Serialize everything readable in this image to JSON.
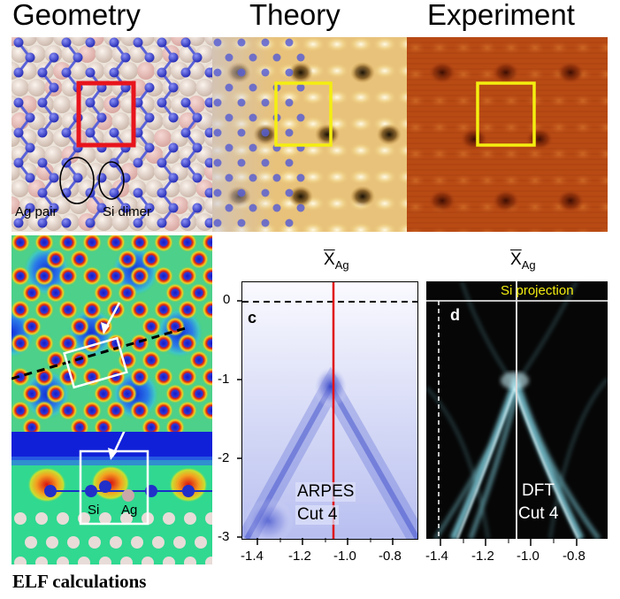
{
  "titles": {
    "geometry": "Geometry",
    "theory": "Theory",
    "experiment": "Experiment"
  },
  "geometry_labels": {
    "ag_pair": "Ag pair",
    "si_dimer": "Si dimer"
  },
  "elf": {
    "si_label": "Si",
    "ag_label": "Ag",
    "caption": "ELF calculations"
  },
  "arpes": {
    "panel_label": "c",
    "text_line1": "ARPES",
    "text_line2": "Cut 4",
    "top_label": "X",
    "top_sub": "Ag",
    "y_ticks": [
      "0",
      "-1",
      "-2",
      "-3"
    ],
    "x_ticks": [
      "-1.4",
      "-1.2",
      "-1.0",
      "-0.8"
    ]
  },
  "dft": {
    "panel_label": "d",
    "projection": "Si projection",
    "text_line1": "DFT",
    "text_line2": "Cut 4",
    "top_label": "X",
    "top_sub": "Ag",
    "x_ticks": [
      "-1.4",
      "-1.2",
      "-1.0",
      "-0.8"
    ]
  },
  "colors": {
    "red_box": "#e8141c",
    "yellow_box": "#f4ee10",
    "arpes_line": "#e01010",
    "si_atom": "#4a55d8",
    "ag_atom": "#e8c8c0"
  }
}
